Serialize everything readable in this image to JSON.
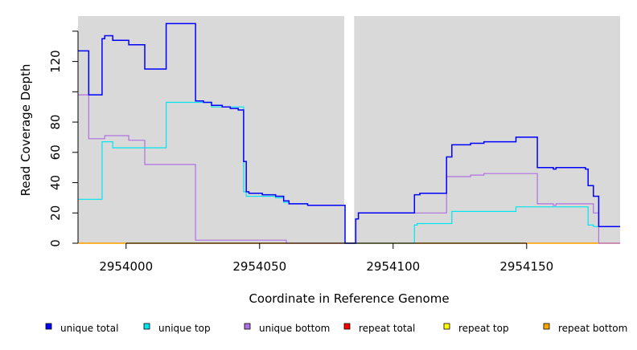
{
  "chart_data": {
    "type": "line",
    "step": true,
    "xlabel": "Coordinate in Reference Genome",
    "ylabel": "Read Coverage Depth",
    "xlim": [
      2953982,
      2954185
    ],
    "ylim": [
      0,
      150
    ],
    "x_ticks": [
      2954000,
      2954050,
      2954100,
      2954150
    ],
    "x_tick_labels": [
      "2954000",
      "2954050",
      "2954100",
      "2954150"
    ],
    "y_ticks": [
      0,
      20,
      40,
      60,
      80,
      120
    ],
    "y_tick_labels": [
      "0",
      "20",
      "40",
      "60",
      "80",
      "120"
    ],
    "y_minor_ticks": [
      100,
      140
    ],
    "gap": [
      2954082,
      2954086
    ],
    "background_color": "#d9d9d9",
    "legend_position": "bottom",
    "series": [
      {
        "name": "unique total",
        "color": "#0000ff",
        "points": [
          [
            2953982,
            127
          ],
          [
            2953986,
            98
          ],
          [
            2953991,
            135
          ],
          [
            2953992,
            137
          ],
          [
            2953995,
            134
          ],
          [
            2954001,
            131
          ],
          [
            2954007,
            115
          ],
          [
            2954015,
            145
          ],
          [
            2954026,
            94
          ],
          [
            2954029,
            93
          ],
          [
            2954032,
            91
          ],
          [
            2954036,
            90
          ],
          [
            2954039,
            89
          ],
          [
            2954042,
            88
          ],
          [
            2954044,
            54
          ],
          [
            2954045,
            34
          ],
          [
            2954046,
            33
          ],
          [
            2954051,
            32
          ],
          [
            2954056,
            31
          ],
          [
            2954059,
            28
          ],
          [
            2954061,
            26
          ],
          [
            2954068,
            25
          ],
          [
            2954082,
            0
          ],
          [
            2954086,
            16
          ],
          [
            2954087,
            20
          ],
          [
            2954108,
            32
          ],
          [
            2954110,
            33
          ],
          [
            2954120,
            57
          ],
          [
            2954122,
            65
          ],
          [
            2954129,
            66
          ],
          [
            2954134,
            67
          ],
          [
            2954146,
            70
          ],
          [
            2954154,
            50
          ],
          [
            2954160,
            49
          ],
          [
            2954161,
            50
          ],
          [
            2954172,
            49
          ],
          [
            2954173,
            38
          ],
          [
            2954175,
            31
          ],
          [
            2954177,
            11
          ],
          [
            2954185,
            11
          ]
        ]
      },
      {
        "name": "unique top",
        "color": "#00e5ee",
        "points": [
          [
            2953982,
            29
          ],
          [
            2953991,
            67
          ],
          [
            2953995,
            63
          ],
          [
            2954015,
            93
          ],
          [
            2954032,
            90
          ],
          [
            2954044,
            34
          ],
          [
            2954045,
            31
          ],
          [
            2954056,
            30
          ],
          [
            2954059,
            27
          ],
          [
            2954061,
            26
          ],
          [
            2954068,
            25
          ],
          [
            2954082,
            0
          ],
          [
            2954086,
            0
          ],
          [
            2954108,
            12
          ],
          [
            2954109,
            13
          ],
          [
            2954122,
            21
          ],
          [
            2954146,
            24
          ],
          [
            2954173,
            12
          ],
          [
            2954175,
            11
          ],
          [
            2954185,
            11
          ]
        ]
      },
      {
        "name": "unique bottom",
        "color": "#b070e0",
        "points": [
          [
            2953982,
            98
          ],
          [
            2953986,
            69
          ],
          [
            2953992,
            71
          ],
          [
            2954001,
            68
          ],
          [
            2954007,
            52
          ],
          [
            2954026,
            2
          ],
          [
            2954060,
            0
          ],
          [
            2954082,
            0
          ],
          [
            2954086,
            16
          ],
          [
            2954087,
            20
          ],
          [
            2954120,
            44
          ],
          [
            2954129,
            45
          ],
          [
            2954134,
            46
          ],
          [
            2954154,
            26
          ],
          [
            2954160,
            25
          ],
          [
            2954161,
            26
          ],
          [
            2954175,
            20
          ],
          [
            2954177,
            0
          ],
          [
            2954185,
            0
          ]
        ]
      },
      {
        "name": "repeat total",
        "color": "#ff0000",
        "points": [
          [
            2953982,
            0
          ],
          [
            2954185,
            0
          ]
        ]
      },
      {
        "name": "repeat top",
        "color": "#ffff00",
        "points": [
          [
            2953982,
            0
          ],
          [
            2954185,
            0
          ]
        ]
      },
      {
        "name": "repeat bottom",
        "color": "#ffa500",
        "points": [
          [
            2953982,
            0
          ],
          [
            2954185,
            0
          ]
        ]
      }
    ]
  }
}
